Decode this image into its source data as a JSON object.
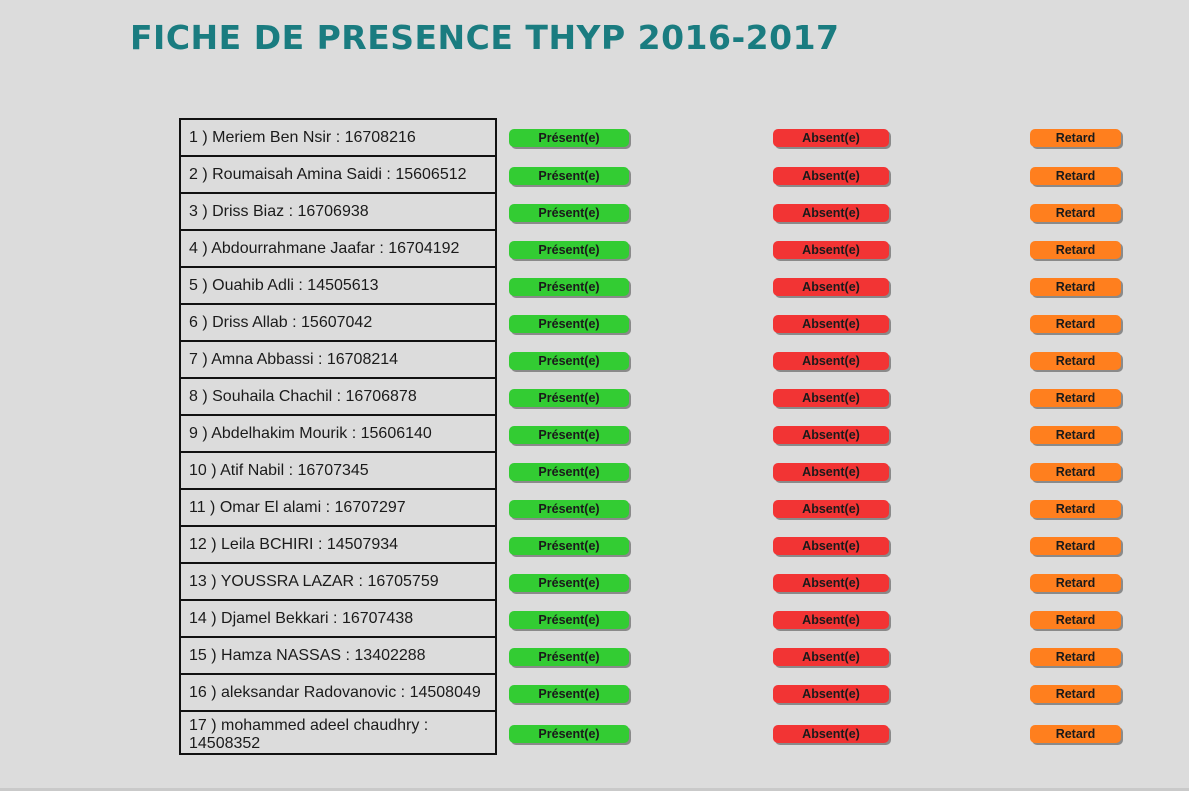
{
  "page": {
    "title": "FICHE DE PRESENCE THYP 2016-2017"
  },
  "buttons": {
    "present": "Présent(e)",
    "absent": "Absent(e)",
    "retard": "Retard"
  },
  "colors": {
    "title": "#1a7c80",
    "present": "#33cc33",
    "absent": "#f23434",
    "retard": "#ff7f1e",
    "background": "#dcdcdc"
  },
  "students": [
    "1 ) Meriem Ben Nsir : 16708216",
    "2 ) Roumaisah Amina Saidi : 15606512",
    "3 ) Driss Biaz : 16706938",
    "4 ) Abdourrahmane Jaafar : 16704192",
    "5 ) Ouahib Adli : 14505613",
    "6 ) Driss Allab : 15607042",
    "7 ) Amna Abbassi : 16708214",
    "8 ) Souhaila Chachil : 16706878",
    "9 ) Abdelhakim Mourik : 15606140",
    "10 ) Atif Nabil : 16707345",
    "11 ) Omar El alami : 16707297",
    "12 ) Leila BCHIRI : 14507934",
    "13 ) YOUSSRA LAZAR : 16705759",
    "14 ) Djamel Bekkari : 16707438",
    "15 ) Hamza NASSAS : 13402288",
    "16 ) aleksandar Radovanovic : 14508049",
    "17 ) mohammed adeel chaudhry : 14508352"
  ]
}
